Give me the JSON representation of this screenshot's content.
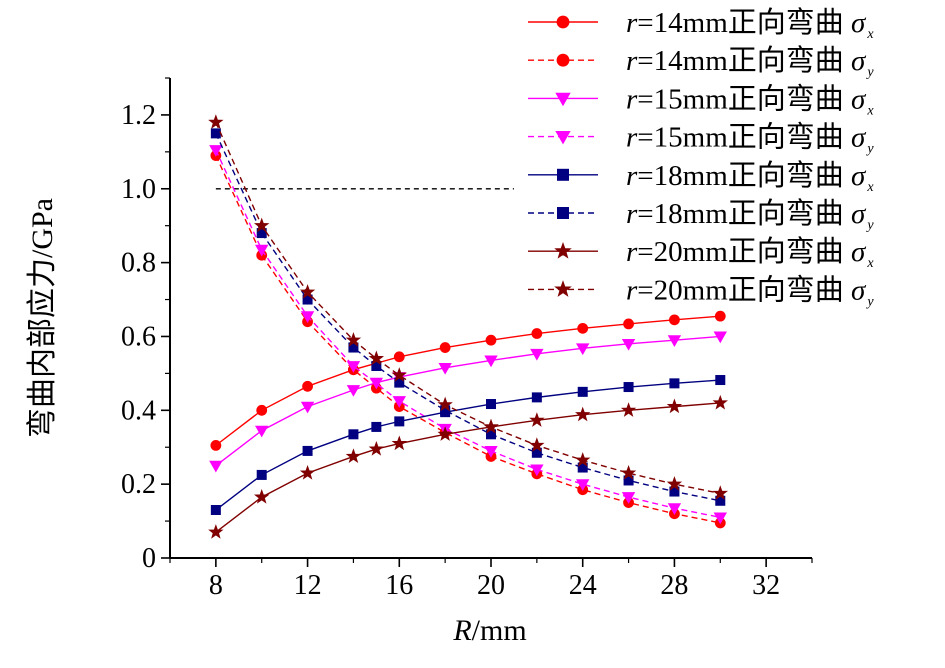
{
  "chart_data": {
    "type": "line",
    "xlabel": "R/mm",
    "xlabel_parts": {
      "italic": "R",
      "rest": "/mm"
    },
    "ylabel": "弯曲内部应力/GPa",
    "xlim": [
      6,
      34
    ],
    "ylim": [
      0,
      1.3
    ],
    "xticks": [
      8,
      12,
      16,
      20,
      24,
      28,
      32
    ],
    "yticks": [
      0,
      0.2,
      0.4,
      0.6,
      0.8,
      1.0,
      1.2
    ],
    "ytick_labels": [
      "0",
      "0.2",
      "0.4",
      "0.6",
      "0.8",
      "1.0",
      "1.2"
    ],
    "grid": false,
    "legend_position": "top-right",
    "reference_line": {
      "y": 1.0,
      "x_from": 8,
      "x_to": 21,
      "style": "dashed",
      "color": "#000000"
    },
    "series": [
      {
        "name": "r=14mm正向弯曲 σx",
        "label_prefix": "r",
        "label_main": "=14mm正向弯曲 ",
        "label_sigma": "σ",
        "label_sub": "x",
        "color": "#ff0000",
        "dash": "solid",
        "marker": "circle",
        "x": [
          8,
          10,
          12,
          14,
          16,
          18,
          20,
          22,
          24,
          26,
          28,
          30
        ],
        "y": [
          0.305,
          0.4,
          0.465,
          0.51,
          0.545,
          0.57,
          0.59,
          0.608,
          0.622,
          0.634,
          0.645,
          0.655
        ]
      },
      {
        "name": "r=14mm正向弯曲 σy",
        "label_prefix": "r",
        "label_main": "=14mm正向弯曲 ",
        "label_sigma": "σ",
        "label_sub": "y",
        "color": "#ff0000",
        "dash": "dashed",
        "marker": "circle",
        "x": [
          8,
          10,
          12,
          14,
          15,
          16,
          18,
          20,
          22,
          24,
          26,
          28,
          30
        ],
        "y": [
          1.09,
          0.82,
          0.64,
          0.51,
          0.46,
          0.41,
          0.34,
          0.275,
          0.228,
          0.185,
          0.15,
          0.12,
          0.095
        ]
      },
      {
        "name": "r=15mm正向弯曲 σx",
        "label_prefix": "r",
        "label_main": "=15mm正向弯曲 ",
        "label_sigma": "σ",
        "label_sub": "x",
        "color": "#ff00ff",
        "dash": "solid",
        "marker": "triangle-down",
        "x": [
          8,
          10,
          12,
          14,
          15,
          16,
          18,
          20,
          22,
          24,
          26,
          28,
          30
        ],
        "y": [
          0.25,
          0.345,
          0.41,
          0.455,
          0.475,
          0.49,
          0.515,
          0.535,
          0.553,
          0.568,
          0.58,
          0.59,
          0.6
        ]
      },
      {
        "name": "r=15mm正向弯曲 σy",
        "label_prefix": "r",
        "label_main": "=15mm正向弯曲 ",
        "label_sigma": "σ",
        "label_sub": "y",
        "color": "#ff00ff",
        "dash": "dashed",
        "marker": "triangle-down",
        "x": [
          8,
          10,
          12,
          14,
          16,
          18,
          20,
          22,
          24,
          26,
          28,
          30
        ],
        "y": [
          1.105,
          0.835,
          0.655,
          0.52,
          0.425,
          0.35,
          0.29,
          0.24,
          0.2,
          0.165,
          0.135,
          0.11
        ]
      },
      {
        "name": "r=18mm正向弯曲 σx",
        "label_prefix": "r",
        "label_main": "=18mm正向弯曲 ",
        "label_sigma": "σ",
        "label_sub": "x",
        "color": "#000080",
        "dash": "solid",
        "marker": "square",
        "x": [
          8,
          10,
          12,
          14,
          15,
          16,
          18,
          20,
          22,
          24,
          26,
          28,
          30
        ],
        "y": [
          0.13,
          0.225,
          0.29,
          0.335,
          0.355,
          0.37,
          0.395,
          0.417,
          0.435,
          0.45,
          0.463,
          0.473,
          0.482
        ]
      },
      {
        "name": "r=18mm正向弯曲 σy",
        "label_prefix": "r",
        "label_main": "=18mm正向弯曲 ",
        "label_sigma": "σ",
        "label_sub": "y",
        "color": "#000080",
        "dash": "dashed",
        "marker": "square",
        "x": [
          8,
          10,
          12,
          14,
          15,
          16,
          18,
          20,
          22,
          24,
          26,
          28,
          30
        ],
        "y": [
          1.15,
          0.88,
          0.7,
          0.57,
          0.52,
          0.475,
          0.4,
          0.335,
          0.285,
          0.245,
          0.21,
          0.18,
          0.155
        ]
      },
      {
        "name": "r=20mm正向弯曲 σx",
        "label_prefix": "r",
        "label_main": "=20mm正向弯曲 ",
        "label_sigma": "σ",
        "label_sub": "x",
        "color": "#800000",
        "dash": "solid",
        "marker": "star",
        "x": [
          8,
          10,
          12,
          14,
          15,
          16,
          18,
          20,
          22,
          24,
          26,
          28,
          30
        ],
        "y": [
          0.07,
          0.165,
          0.23,
          0.275,
          0.295,
          0.31,
          0.335,
          0.355,
          0.373,
          0.388,
          0.4,
          0.41,
          0.42
        ]
      },
      {
        "name": "r=20mm正向弯曲 σy",
        "label_prefix": "r",
        "label_main": "=20mm正向弯曲 ",
        "label_sigma": "σ",
        "label_sub": "y",
        "color": "#800000",
        "dash": "dashed",
        "marker": "star",
        "x": [
          8,
          10,
          12,
          14,
          15,
          16,
          18,
          20,
          22,
          24,
          26,
          28,
          30
        ],
        "y": [
          1.18,
          0.9,
          0.72,
          0.59,
          0.54,
          0.495,
          0.415,
          0.355,
          0.305,
          0.265,
          0.23,
          0.2,
          0.175
        ]
      }
    ]
  }
}
